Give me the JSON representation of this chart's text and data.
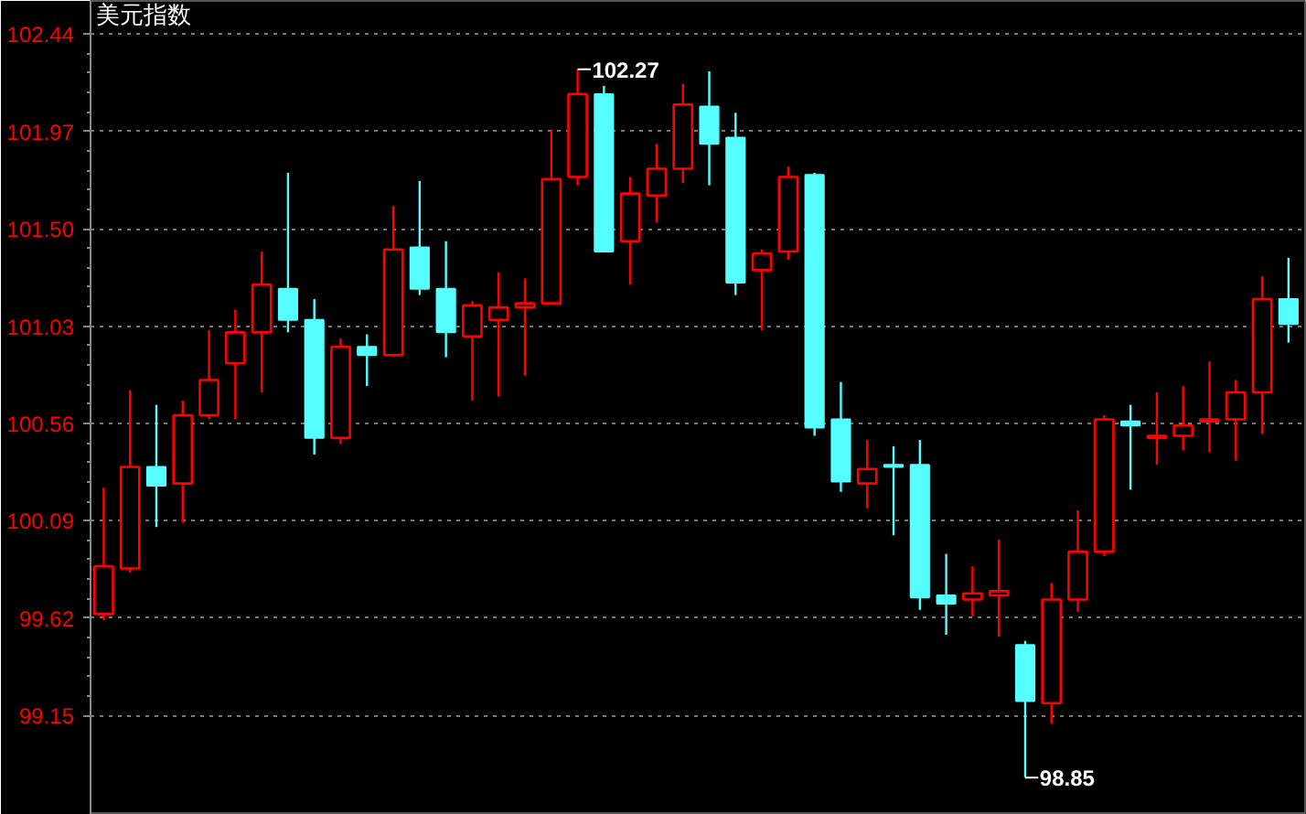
{
  "chart_data": {
    "type": "candlestick",
    "title": "美元指数",
    "categories": [
      null,
      null,
      null,
      null,
      null,
      null,
      null,
      null,
      null,
      null,
      null,
      null,
      null,
      null,
      null,
      null,
      null,
      null,
      null,
      null,
      null,
      null,
      null,
      null,
      null,
      null,
      null,
      null,
      null,
      null,
      null,
      null,
      null,
      null,
      null,
      null,
      null,
      null,
      null,
      null,
      null,
      null,
      null,
      null,
      null,
      null
    ],
    "ohlc": [
      [
        99.64,
        100.25,
        99.61,
        99.87
      ],
      [
        99.86,
        100.72,
        99.84,
        100.35
      ],
      [
        100.35,
        100.65,
        100.06,
        100.26
      ],
      [
        100.27,
        100.67,
        100.08,
        100.6
      ],
      [
        100.6,
        101.01,
        100.58,
        100.77
      ],
      [
        100.85,
        101.11,
        100.58,
        101.0
      ],
      [
        101.0,
        101.39,
        100.71,
        101.23
      ],
      [
        101.21,
        101.77,
        101.0,
        101.06
      ],
      [
        101.06,
        101.16,
        100.41,
        100.49
      ],
      [
        100.49,
        100.97,
        100.46,
        100.93
      ],
      [
        100.93,
        100.99,
        100.74,
        100.89
      ],
      [
        100.89,
        101.61,
        100.88,
        101.4
      ],
      [
        101.41,
        101.73,
        101.18,
        101.21
      ],
      [
        101.21,
        101.44,
        100.88,
        101.0
      ],
      [
        100.98,
        101.15,
        100.67,
        101.13
      ],
      [
        101.06,
        101.29,
        100.69,
        101.12
      ],
      [
        101.12,
        101.26,
        100.79,
        101.14
      ],
      [
        101.14,
        101.98,
        101.14,
        101.74
      ],
      [
        101.75,
        102.27,
        101.71,
        102.15
      ],
      [
        102.15,
        102.19,
        101.39,
        101.39
      ],
      [
        101.44,
        101.75,
        101.23,
        101.67
      ],
      [
        101.66,
        101.91,
        101.53,
        101.79
      ],
      [
        101.79,
        102.2,
        101.72,
        102.1
      ],
      [
        102.09,
        102.26,
        101.71,
        101.91
      ],
      [
        101.94,
        102.06,
        101.18,
        101.24
      ],
      [
        101.3,
        101.4,
        101.01,
        101.38
      ],
      [
        101.39,
        101.8,
        101.35,
        101.75
      ],
      [
        101.76,
        101.77,
        100.5,
        100.54
      ],
      [
        100.58,
        100.76,
        100.23,
        100.28
      ],
      [
        100.27,
        100.48,
        100.15,
        100.34
      ],
      [
        100.36,
        100.45,
        100.02,
        100.35
      ],
      [
        100.36,
        100.48,
        99.66,
        99.72
      ],
      [
        99.73,
        99.93,
        99.54,
        99.69
      ],
      [
        99.71,
        99.87,
        99.63,
        99.74
      ],
      [
        99.73,
        100.0,
        99.53,
        99.75
      ],
      [
        99.49,
        99.51,
        98.85,
        99.22
      ],
      [
        99.21,
        99.79,
        99.11,
        99.71
      ],
      [
        99.71,
        100.14,
        99.65,
        99.94
      ],
      [
        99.94,
        100.6,
        99.92,
        100.58
      ],
      [
        100.57,
        100.65,
        100.24,
        100.55
      ],
      [
        100.49,
        100.71,
        100.36,
        100.5
      ],
      [
        100.5,
        100.74,
        100.43,
        100.55
      ],
      [
        100.57,
        100.86,
        100.42,
        100.58
      ],
      [
        100.58,
        100.77,
        100.38,
        100.71
      ],
      [
        100.71,
        101.27,
        100.51,
        101.16
      ],
      [
        101.16,
        101.36,
        100.95,
        101.04
      ]
    ],
    "colors": [
      "#ff0000",
      "#ff0000",
      "#55ffff",
      "#ff0000",
      "#ff0000",
      "#ff0000",
      "#ff0000",
      "#55ffff",
      "#55ffff",
      "#ff0000",
      "#55ffff",
      "#ff0000",
      "#55ffff",
      "#55ffff",
      "#ff0000",
      "#ff0000",
      "#ff0000",
      "#ff0000",
      "#ff0000",
      "#55ffff",
      "#ff0000",
      "#ff0000",
      "#ff0000",
      "#55ffff",
      "#55ffff",
      "#ff0000",
      "#ff0000",
      "#55ffff",
      "#55ffff",
      "#ff0000",
      "#55ffff",
      "#55ffff",
      "#55ffff",
      "#ff0000",
      "#ff0000",
      "#55ffff",
      "#ff0000",
      "#ff0000",
      "#ff0000",
      "#55ffff",
      "#ff0000",
      "#ff0000",
      "#ff0000",
      "#ff0000",
      "#ff0000",
      "#55ffff"
    ],
    "ylim": [
      98.67,
      102.6
    ],
    "yticks": [
      99.15,
      99.62,
      100.09,
      100.56,
      101.03,
      {
        "value": 101.5,
        "label": "101.50"
      },
      101.97,
      102.44
    ],
    "annotations": [
      "102.27",
      "98.85"
    ],
    "grid": "y"
  }
}
